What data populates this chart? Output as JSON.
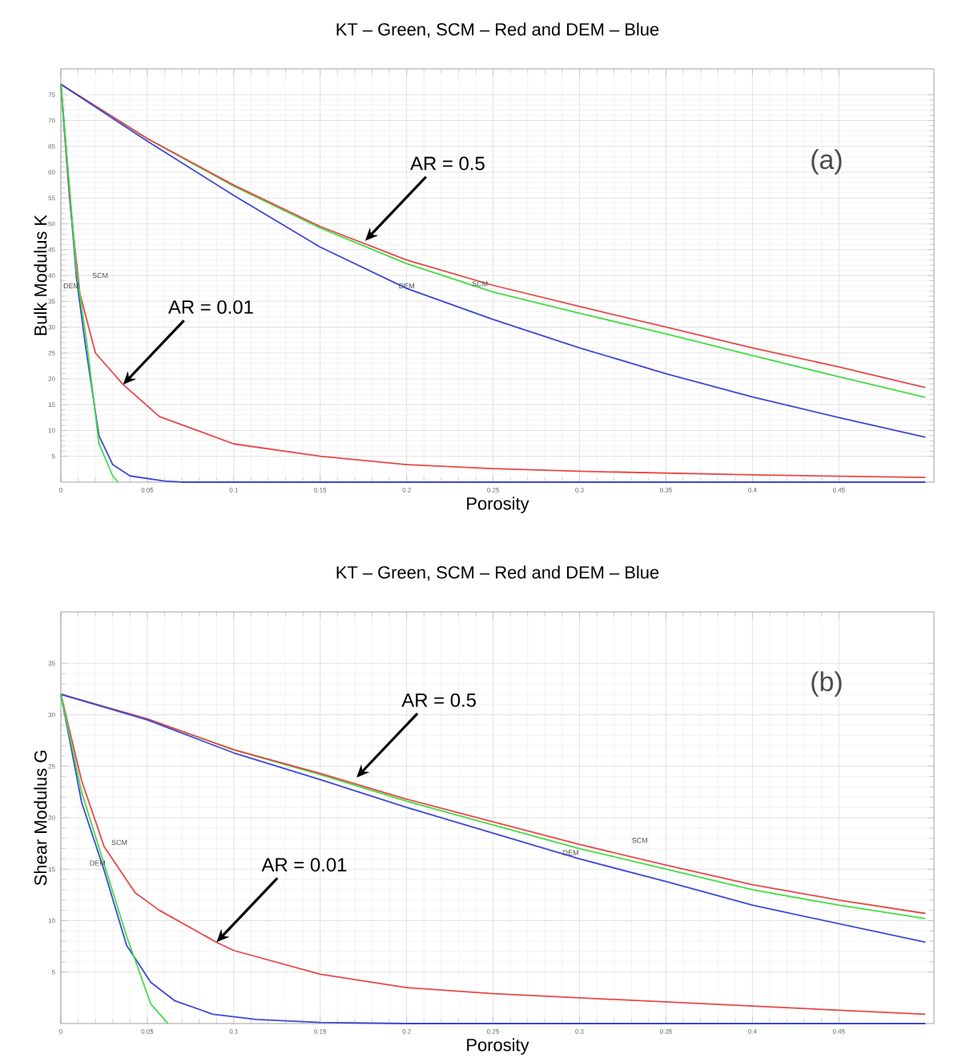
{
  "chart_data": [
    {
      "type": "line",
      "title": "KT – Green, SCM – Red and DEM – Blue",
      "xlabel": "Porosity",
      "ylabel": "Bulk Modulus K",
      "xlim": [
        0,
        0.505
      ],
      "ylim": [
        0,
        80
      ],
      "xticks": [
        0,
        0.05,
        0.1,
        0.15,
        0.2,
        0.25,
        0.3,
        0.35,
        0.4,
        0.45
      ],
      "yticks": [
        5,
        10,
        15,
        20,
        25,
        30,
        35,
        40,
        45,
        50,
        55,
        60,
        65,
        70,
        75
      ],
      "grid": true,
      "series": [
        {
          "color": "#44dd44",
          "x": [
            0,
            0.05,
            0.1,
            0.15,
            0.2,
            0.25,
            0.3,
            0.35,
            0.4,
            0.45,
            0.5
          ],
          "values": [
            77,
            66.5,
            57.3,
            49.2,
            42.3,
            36.8,
            32.7,
            28.7,
            24.5,
            20.4,
            16.4
          ]
        },
        {
          "color": "#e84848",
          "x": [
            0,
            0.05,
            0.1,
            0.15,
            0.2,
            0.25,
            0.3,
            0.35,
            0.4,
            0.45,
            0.5
          ],
          "values": [
            77,
            66.5,
            57.5,
            49.5,
            43,
            38.1,
            34,
            30,
            26,
            22.3,
            18.3
          ]
        },
        {
          "color": "#3d48d8",
          "x": [
            0,
            0.05,
            0.1,
            0.15,
            0.2,
            0.25,
            0.3,
            0.35,
            0.4,
            0.45,
            0.5
          ],
          "values": [
            77,
            66,
            55.5,
            45.5,
            37.5,
            31.5,
            26,
            21,
            16.5,
            12.5,
            8.7
          ]
        },
        {
          "color": "#e84848",
          "x": [
            0,
            0.005,
            0.011,
            0.02,
            0.036,
            0.057,
            0.1,
            0.15,
            0.2,
            0.25,
            0.3,
            0.4,
            0.5
          ],
          "values": [
            77,
            55,
            36.5,
            25,
            18.9,
            12.7,
            7.4,
            5,
            3.4,
            2.6,
            2.1,
            1.4,
            0.9
          ]
        },
        {
          "color": "#3d48d8",
          "x": [
            0,
            0.009,
            0.014,
            0.022,
            0.03,
            0.04,
            0.06,
            0.07,
            0.5
          ],
          "values": [
            77,
            39.6,
            27,
            9,
            3.4,
            1.2,
            0.2,
            0,
            0
          ]
        },
        {
          "color": "#44dd44",
          "x": [
            0,
            0.009,
            0.015,
            0.022,
            0.03,
            0.033
          ],
          "values": [
            77,
            41,
            27,
            7.5,
            1.2,
            0
          ]
        }
      ],
      "annotations": [
        "(a)",
        {
          "text": "AR = 0.5",
          "x": 0.176,
          "y": 46.7
        },
        {
          "text": "AR = 0.01",
          "x": 0.036,
          "y": 18.9
        },
        "DEM",
        "SCM",
        "DEM",
        "SCM"
      ]
    },
    {
      "type": "line",
      "title": "KT – Green, SCM – Red and DEM – Blue",
      "xlabel": "Porosity",
      "ylabel": "Shear Modulus G",
      "xlim": [
        0,
        0.505
      ],
      "ylim": [
        0,
        40
      ],
      "xticks": [
        0,
        0.05,
        0.1,
        0.15,
        0.2,
        0.25,
        0.3,
        0.35,
        0.4,
        0.45
      ],
      "yticks": [
        5,
        10,
        15,
        20,
        25,
        30,
        35
      ],
      "grid": true,
      "series": [
        {
          "color": "#44dd44",
          "x": [
            0,
            0.05,
            0.1,
            0.15,
            0.2,
            0.25,
            0.3,
            0.35,
            0.4,
            0.45,
            0.5
          ],
          "values": [
            32,
            29.6,
            26.6,
            24.2,
            21.6,
            19.3,
            17,
            15,
            13,
            11.5,
            10.2
          ]
        },
        {
          "color": "#e84848",
          "x": [
            0,
            0.05,
            0.1,
            0.15,
            0.2,
            0.25,
            0.3,
            0.35,
            0.4,
            0.45,
            0.5
          ],
          "values": [
            32,
            29.6,
            26.6,
            24.3,
            21.8,
            19.6,
            17.4,
            15.4,
            13.5,
            12,
            10.7
          ]
        },
        {
          "color": "#3d48d8",
          "x": [
            0,
            0.05,
            0.1,
            0.15,
            0.2,
            0.25,
            0.3,
            0.35,
            0.4,
            0.45,
            0.5
          ],
          "values": [
            32,
            29.5,
            26.3,
            23.7,
            21,
            18.5,
            16,
            13.8,
            11.5,
            9.7,
            7.9
          ]
        },
        {
          "color": "#e84848",
          "x": [
            0,
            0.012,
            0.025,
            0.043,
            0.057,
            0.09,
            0.1,
            0.15,
            0.2,
            0.25,
            0.3,
            0.4,
            0.5
          ],
          "values": [
            32,
            23.6,
            17.2,
            12.7,
            11,
            7.9,
            7.1,
            4.8,
            3.5,
            2.9,
            2.5,
            1.7,
            0.9
          ]
        },
        {
          "color": "#3d48d8",
          "x": [
            0,
            0.012,
            0.025,
            0.038,
            0.052,
            0.066,
            0.088,
            0.113,
            0.15,
            0.2,
            0.5
          ],
          "values": [
            32,
            21.5,
            14.9,
            7.6,
            4,
            2.2,
            0.9,
            0.4,
            0.1,
            0,
            0
          ]
        },
        {
          "color": "#44dd44",
          "x": [
            0,
            0.012,
            0.025,
            0.038,
            0.052,
            0.062
          ],
          "values": [
            32,
            22.5,
            15.5,
            8.5,
            1.9,
            0
          ]
        }
      ],
      "annotations": [
        "(b)",
        {
          "text": "AR = 0.5",
          "x": 0.171,
          "y": 23.9
        },
        {
          "text": "AR = 0.01",
          "x": 0.09,
          "y": 7.9
        },
        "SCM",
        "DEM",
        "DEM",
        "SCM"
      ]
    }
  ]
}
